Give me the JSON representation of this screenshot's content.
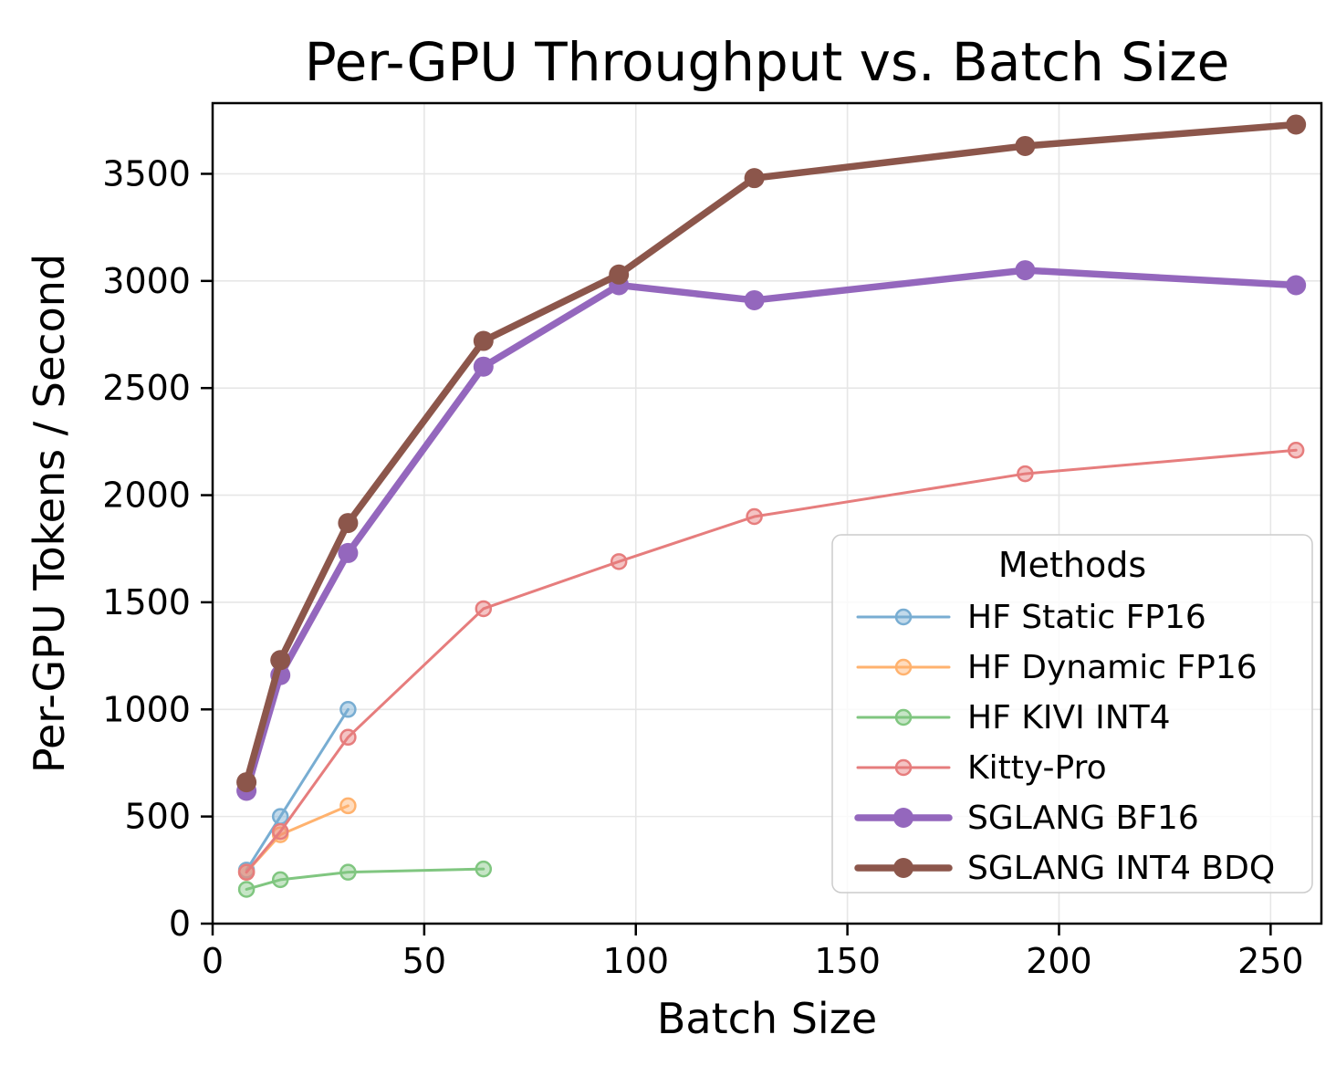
{
  "chart_data": {
    "type": "line",
    "title": "Per-GPU Throughput vs. Batch Size",
    "xlabel": "Batch Size",
    "ylabel": "Per-GPU Tokens / Second",
    "xlim": [
      0,
      262
    ],
    "ylim": [
      0,
      3830
    ],
    "xticks": [
      0,
      50,
      100,
      150,
      200,
      250
    ],
    "yticks": [
      0,
      500,
      1000,
      1500,
      2000,
      2500,
      3000,
      3500
    ],
    "grid": true,
    "grid_color": "#e6e6e6",
    "background_color": "#ffffff",
    "legend": {
      "title": "Methods",
      "position": "lower right"
    },
    "series": [
      {
        "name": "HF Static FP16",
        "color": "#78add2",
        "style": "thin",
        "marker": "circle",
        "x": [
          8,
          16,
          32
        ],
        "y": [
          250,
          500,
          1000
        ]
      },
      {
        "name": "HF Dynamic FP16",
        "color": "#ffb26e",
        "style": "thin",
        "marker": "circle",
        "x": [
          8,
          16,
          32
        ],
        "y": [
          240,
          415,
          550
        ]
      },
      {
        "name": "HF KIVI INT4",
        "color": "#80c680",
        "style": "thin",
        "marker": "circle",
        "x": [
          8,
          16,
          32,
          64
        ],
        "y": [
          160,
          205,
          240,
          255
        ]
      },
      {
        "name": "Kitty-Pro",
        "color": "#e67d7d",
        "style": "thin",
        "marker": "circle",
        "x": [
          8,
          16,
          32,
          64,
          96,
          128,
          192,
          256
        ],
        "y": [
          240,
          430,
          870,
          1470,
          1690,
          1900,
          2100,
          2210
        ]
      },
      {
        "name": "SGLANG BF16",
        "color": "#9467bd",
        "style": "thick",
        "marker": "circle",
        "x": [
          8,
          16,
          32,
          64,
          96,
          128,
          192,
          256
        ],
        "y": [
          620,
          1160,
          1730,
          2600,
          2980,
          2910,
          3050,
          2980
        ]
      },
      {
        "name": "SGLANG INT4 BDQ",
        "color": "#8c564b",
        "style": "thick",
        "marker": "circle",
        "x": [
          8,
          16,
          32,
          64,
          96,
          128,
          192,
          256
        ],
        "y": [
          660,
          1230,
          1870,
          2720,
          3030,
          3480,
          3630,
          3730
        ]
      }
    ]
  }
}
